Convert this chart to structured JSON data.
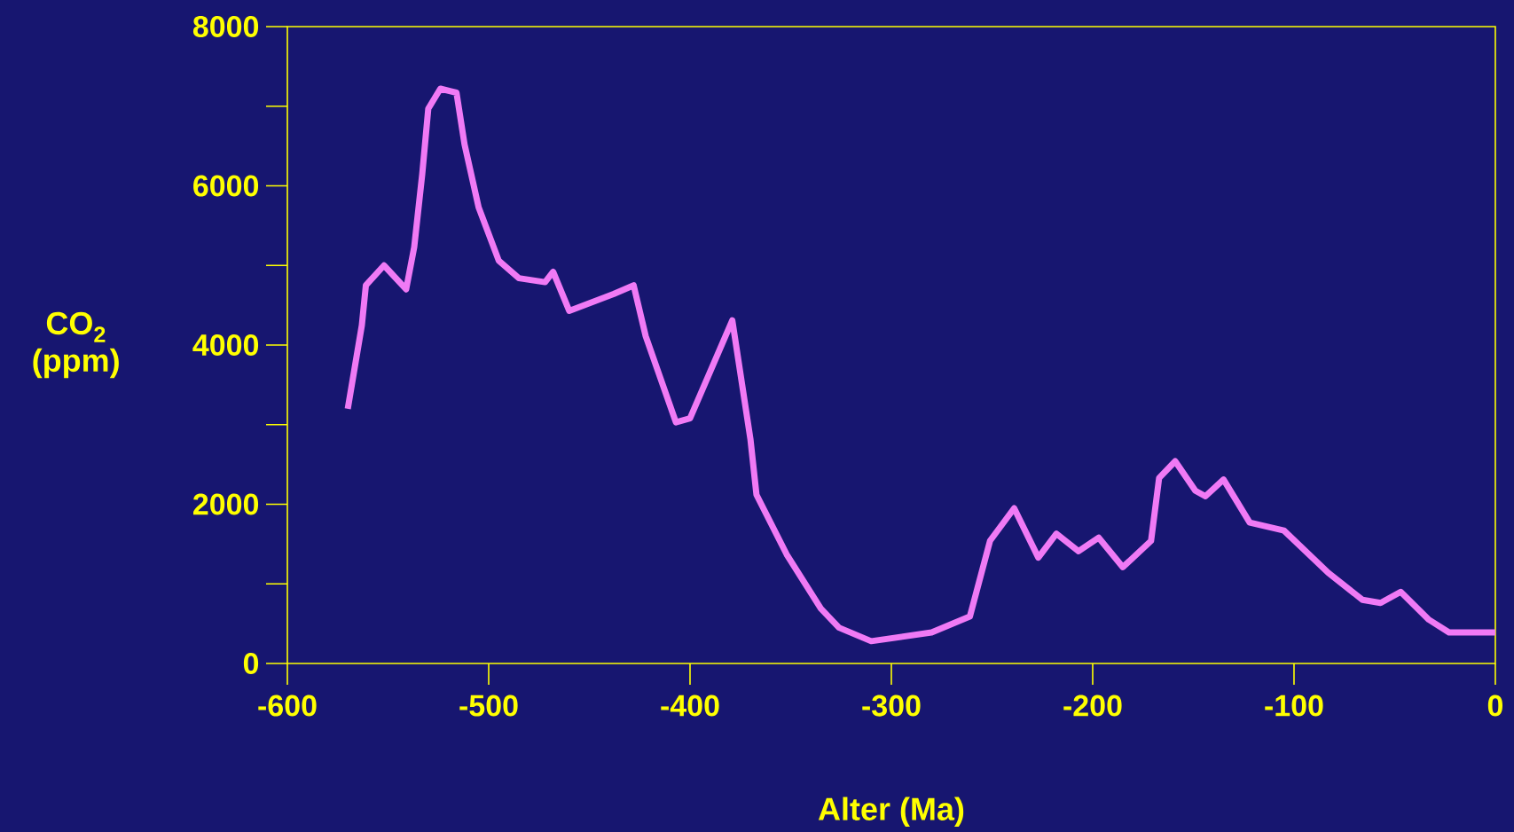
{
  "chart_data": {
    "type": "line",
    "xlabel": "Alter (Ma)",
    "ylabel": "CO$_{2}$ (ppm)",
    "x": [
      -570,
      -563,
      -561,
      -552,
      -541,
      -537,
      -533,
      -530,
      -524,
      -516,
      -512,
      -505,
      -495,
      -485,
      -472,
      -468,
      -460,
      -438,
      -428,
      -422,
      -407,
      -400,
      -379,
      -370,
      -367,
      -352,
      -335,
      -326,
      -310,
      -280,
      -261,
      -251,
      -239,
      -227,
      -218,
      -207,
      -197,
      -185,
      -171,
      -167,
      -159,
      -149,
      -144,
      -135,
      -122,
      -105,
      -83,
      -66,
      -57,
      -47,
      -33,
      -23,
      0
    ],
    "values": [
      3200,
      4250,
      4750,
      5000,
      4700,
      5230,
      6150,
      6970,
      7220,
      7170,
      6520,
      5730,
      5060,
      4840,
      4790,
      4920,
      4430,
      4640,
      4750,
      4110,
      3030,
      3080,
      4310,
      2820,
      2120,
      1370,
      690,
      450,
      280,
      390,
      590,
      1540,
      1950,
      1330,
      1630,
      1410,
      1580,
      1210,
      1540,
      2330,
      2540,
      2170,
      2100,
      2310,
      1770,
      1670,
      1140,
      800,
      760,
      900,
      550,
      390,
      390
    ],
    "color": "#f07af5",
    "xlim": [
      -600,
      0
    ],
    "ylim": [
      0,
      8000
    ],
    "xticks": [
      -600,
      -500,
      -400,
      -300,
      -200,
      -100,
      0
    ],
    "yticks": [
      0,
      2000,
      4000,
      6000,
      8000
    ],
    "grid": false
  }
}
